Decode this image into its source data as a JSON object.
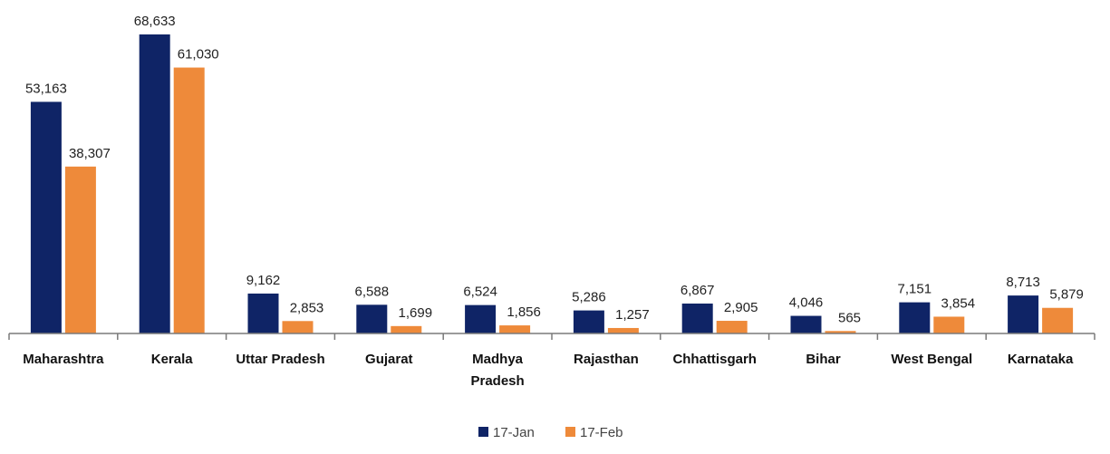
{
  "chart_data": {
    "type": "bar",
    "title": "",
    "xlabel": "",
    "ylabel": "",
    "categories": [
      [
        "Maharashtra"
      ],
      [
        "Kerala"
      ],
      [
        "Uttar Pradesh"
      ],
      [
        "Gujarat"
      ],
      [
        "Madhya",
        "Pradesh"
      ],
      [
        "Rajasthan"
      ],
      [
        "Chhattisgarh"
      ],
      [
        "Bihar"
      ],
      [
        "West Bengal"
      ],
      [
        "Karnataka"
      ]
    ],
    "series": [
      {
        "name": "17-Jan",
        "color": "#0f2466",
        "values": [
          53163,
          68633,
          9162,
          6588,
          6524,
          5286,
          6867,
          4046,
          7151,
          8713
        ],
        "labels": [
          "53,163",
          "68,633",
          "9,162",
          "6,588",
          "6,524",
          "5,286",
          "6,867",
          "4,046",
          "7,151",
          "8,713"
        ]
      },
      {
        "name": "17-Feb",
        "color": "#ee8a3a",
        "values": [
          38307,
          61030,
          2853,
          1699,
          1856,
          1257,
          2905,
          565,
          3854,
          5879
        ],
        "labels": [
          "38,307",
          "61,030",
          "2,853",
          "1,699",
          "1,856",
          "1,257",
          "2,905",
          "565",
          "3,854",
          "5,879"
        ]
      }
    ],
    "ylim": [
      0,
      68633
    ],
    "grid": false,
    "y_axis_visible": false,
    "legend": "bottom-center"
  }
}
